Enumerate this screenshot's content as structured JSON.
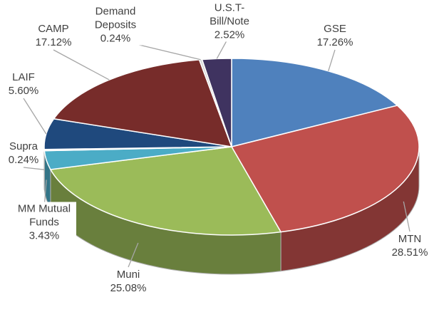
{
  "chart_data": {
    "type": "pie",
    "categories": [
      "GSE",
      "MTN",
      "Muni",
      "MM Mutual Funds",
      "Supra",
      "LAIF",
      "CAMP",
      "Demand Deposits",
      "U.S.T-Bill/Note"
    ],
    "values": [
      17.26,
      28.51,
      25.08,
      3.43,
      0.24,
      5.6,
      17.12,
      0.24,
      2.52
    ],
    "value_labels": [
      "17.26%",
      "28.51%",
      "25.08%",
      "3.43%",
      "0.24%",
      "5.60%",
      "17.12%",
      "0.24%",
      "2.52%"
    ],
    "colors": [
      "#4f81bd",
      "#c0504d",
      "#9bbb59",
      "#4bacc6",
      "#f2f2f2",
      "#1f497d",
      "#772c2a",
      "#d9d9d9",
      "#3f3360"
    ],
    "three_d": true
  }
}
